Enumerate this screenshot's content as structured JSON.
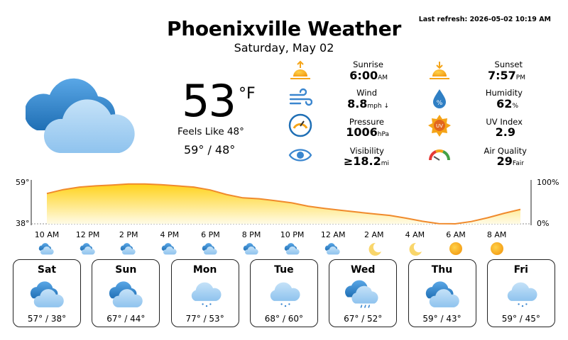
{
  "header": {
    "last_refresh": "Last refresh: 2026-05-02 10:19 AM",
    "title": "Phoenixville Weather",
    "date": "Saturday, May 02"
  },
  "current": {
    "icon": "partly-cloudy-icon",
    "temp": "53",
    "unit": "°F",
    "feels_like": "Feels Like 48°",
    "hi_lo": "59° / 48°"
  },
  "metrics": [
    {
      "label": "Sunrise",
      "value": "6:00",
      "unit": "AM",
      "icon": "sunrise-icon"
    },
    {
      "label": "Sunset",
      "value": "7:57",
      "unit": "PM",
      "icon": "sunset-icon"
    },
    {
      "label": "Wind",
      "value": "8.8",
      "unit": "mph ↓",
      "icon": "wind-icon"
    },
    {
      "label": "Humidity",
      "value": "62",
      "unit": "%",
      "icon": "humidity-icon"
    },
    {
      "label": "Pressure",
      "value": "1006",
      "unit": "hPa",
      "icon": "barometer-icon"
    },
    {
      "label": "UV Index",
      "value": "2.9",
      "unit": "",
      "icon": "uv-icon"
    },
    {
      "label": "Visibility",
      "value": "≥18.2",
      "unit": "mi",
      "icon": "eye-icon"
    },
    {
      "label": "Air Quality",
      "value": "29",
      "unit": "Fair",
      "icon": "air-quality-gauge-icon"
    }
  ],
  "hourly": {
    "y_max_label": "59°",
    "y_min_label": "38°",
    "right_max_label": "100%",
    "right_min_label": "0%",
    "temp_range": [
      38,
      59
    ],
    "temps": [
      53.5,
      55.5,
      56.8,
      57.4,
      57.8,
      58.4,
      58.4,
      58.0,
      57.4,
      56.8,
      55.3,
      53.0,
      51.3,
      50.8,
      49.8,
      48.7,
      47.0,
      45.9,
      44.9,
      44.0,
      43.1,
      42.3,
      40.9,
      39.3,
      38.1,
      38.0,
      39.2,
      41.1,
      43.4,
      45.4
    ],
    "hours": [
      {
        "time": "10 AM",
        "icon": "partly-cloudy-icon"
      },
      {
        "time": "12 PM",
        "icon": "partly-cloudy-icon"
      },
      {
        "time": "2 PM",
        "icon": "partly-cloudy-icon"
      },
      {
        "time": "4 PM",
        "icon": "partly-cloudy-icon"
      },
      {
        "time": "6 PM",
        "icon": "partly-cloudy-icon"
      },
      {
        "time": "8 PM",
        "icon": "partly-cloudy-icon"
      },
      {
        "time": "10 PM",
        "icon": "partly-cloudy-icon"
      },
      {
        "time": "12 AM",
        "icon": "partly-cloudy-icon"
      },
      {
        "time": "2 AM",
        "icon": "moon-icon"
      },
      {
        "time": "4 AM",
        "icon": "moon-icon"
      },
      {
        "time": "6 AM",
        "icon": "sun-icon"
      },
      {
        "time": "8 AM",
        "icon": "sun-icon"
      }
    ]
  },
  "forecast": [
    {
      "day": "Sat",
      "temps": "57° / 38°",
      "icon": "partly-cloudy-icon"
    },
    {
      "day": "Sun",
      "temps": "67° / 44°",
      "icon": "partly-cloudy-icon"
    },
    {
      "day": "Mon",
      "temps": "77° / 53°",
      "icon": "rain-icon"
    },
    {
      "day": "Tue",
      "temps": "68° / 60°",
      "icon": "rain-icon"
    },
    {
      "day": "Wed",
      "temps": "67° / 52°",
      "icon": "rain-cloudy-icon"
    },
    {
      "day": "Thu",
      "temps": "59° / 43°",
      "icon": "partly-cloudy-icon"
    },
    {
      "day": "Fri",
      "temps": "59° / 45°",
      "icon": "rain-icon"
    }
  ],
  "colors": {
    "cloud_dark": "#2f7fc4",
    "cloud_light": "#a9d2f2",
    "sun": "#f5a418",
    "moon": "#f9d66b",
    "chart_line": "#f08a2c",
    "chart_fill_top": "#ffd21a",
    "chart_fill_bottom": "#fffbe6"
  }
}
